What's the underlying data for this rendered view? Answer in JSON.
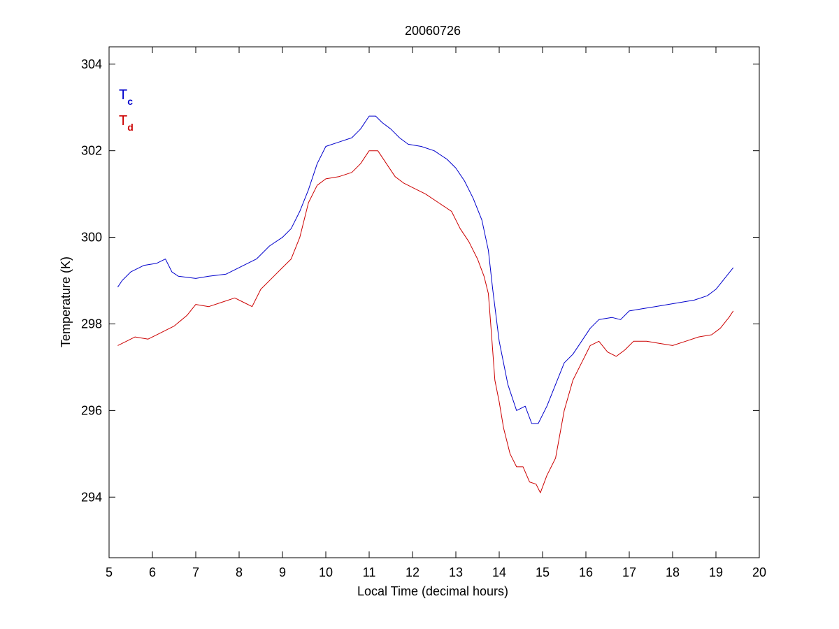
{
  "chart_data": {
    "type": "line",
    "title": "20060726",
    "xlabel": "Local Time (decimal hours)",
    "ylabel": "Temperature (K)",
    "xlim": [
      5,
      20
    ],
    "ylim": [
      292.6,
      304.4
    ],
    "xticks": [
      "5",
      "6",
      "7",
      "8",
      "9",
      "10",
      "11",
      "12",
      "13",
      "14",
      "15",
      "16",
      "17",
      "18",
      "19",
      "20"
    ],
    "yticks": [
      "294",
      "296",
      "298",
      "300",
      "302",
      "304"
    ],
    "grid": false,
    "legend_position": "top-left",
    "series": [
      {
        "name": "T",
        "subscript": "c",
        "color": "#0000cc",
        "x": [
          5.2,
          5.3,
          5.5,
          5.8,
          6.1,
          6.3,
          6.45,
          6.6,
          7.0,
          7.3,
          7.7,
          8.0,
          8.4,
          8.7,
          9.0,
          9.2,
          9.4,
          9.6,
          9.8,
          10.0,
          10.3,
          10.6,
          10.8,
          11.0,
          11.15,
          11.3,
          11.5,
          11.7,
          11.9,
          12.2,
          12.5,
          12.8,
          13.0,
          13.2,
          13.4,
          13.6,
          13.75,
          13.85,
          14.0,
          14.2,
          14.4,
          14.6,
          14.75,
          14.9,
          15.1,
          15.3,
          15.5,
          15.7,
          15.9,
          16.1,
          16.3,
          16.6,
          16.8,
          17.0,
          17.3,
          17.6,
          17.9,
          18.2,
          18.5,
          18.8,
          19.0,
          19.2,
          19.4
        ],
        "y": [
          298.85,
          299.0,
          299.2,
          299.35,
          299.4,
          299.5,
          299.2,
          299.1,
          299.05,
          299.1,
          299.15,
          299.3,
          299.5,
          299.8,
          300.0,
          300.2,
          300.6,
          301.1,
          301.7,
          302.1,
          302.2,
          302.3,
          302.5,
          302.8,
          302.8,
          302.65,
          302.5,
          302.3,
          302.15,
          302.1,
          302.0,
          301.8,
          301.6,
          301.3,
          300.9,
          300.4,
          299.7,
          298.8,
          297.6,
          296.6,
          296.0,
          296.1,
          295.7,
          295.7,
          296.1,
          296.6,
          297.1,
          297.3,
          297.6,
          297.9,
          298.1,
          298.15,
          298.1,
          298.3,
          298.35,
          298.4,
          298.45,
          298.5,
          298.55,
          298.65,
          298.8,
          299.05,
          299.3
        ]
      },
      {
        "name": "T",
        "subscript": "d",
        "color": "#cc0000",
        "x": [
          5.2,
          5.4,
          5.6,
          5.9,
          6.2,
          6.5,
          6.8,
          7.0,
          7.3,
          7.6,
          7.9,
          8.1,
          8.3,
          8.5,
          8.8,
          9.0,
          9.2,
          9.4,
          9.6,
          9.8,
          10.0,
          10.3,
          10.6,
          10.8,
          11.0,
          11.2,
          11.4,
          11.6,
          11.8,
          12.0,
          12.3,
          12.6,
          12.9,
          13.1,
          13.3,
          13.5,
          13.65,
          13.75,
          13.82,
          13.9,
          14.0,
          14.1,
          14.25,
          14.4,
          14.55,
          14.7,
          14.85,
          14.95,
          15.1,
          15.3,
          15.5,
          15.7,
          15.9,
          16.1,
          16.3,
          16.5,
          16.7,
          16.9,
          17.1,
          17.4,
          17.7,
          18.0,
          18.3,
          18.6,
          18.9,
          19.1,
          19.3,
          19.4
        ],
        "y": [
          297.5,
          297.6,
          297.7,
          297.65,
          297.8,
          297.95,
          298.2,
          298.45,
          298.4,
          298.5,
          298.6,
          298.5,
          298.4,
          298.8,
          299.1,
          299.3,
          299.5,
          300.0,
          300.8,
          301.2,
          301.35,
          301.4,
          301.5,
          301.7,
          302.0,
          302.0,
          301.7,
          301.4,
          301.25,
          301.15,
          301.0,
          300.8,
          300.6,
          300.2,
          299.9,
          299.5,
          299.1,
          298.7,
          297.8,
          296.7,
          296.2,
          295.6,
          295.0,
          294.7,
          294.7,
          294.35,
          294.3,
          294.1,
          294.5,
          294.9,
          296.0,
          296.7,
          297.1,
          297.5,
          297.6,
          297.35,
          297.25,
          297.4,
          297.6,
          297.6,
          297.55,
          297.5,
          297.6,
          297.7,
          297.75,
          297.9,
          298.15,
          298.3
        ]
      }
    ]
  }
}
